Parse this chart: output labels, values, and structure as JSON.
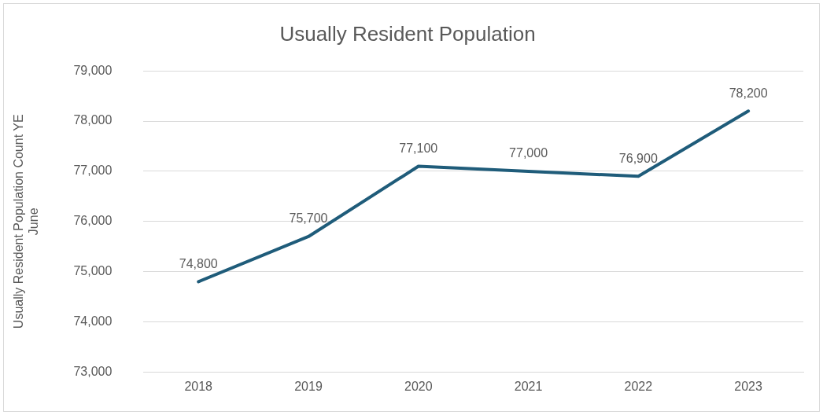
{
  "chart_data": {
    "type": "line",
    "title": "Usually Resident Population",
    "ylabel": "Usually Resident Population Count YE June",
    "categories": [
      "2018",
      "2019",
      "2020",
      "2021",
      "2022",
      "2023"
    ],
    "series": [
      {
        "color": "#1f5c7a",
        "values": [
          74800,
          75700,
          77100,
          77000,
          76900,
          78200
        ],
        "value_labels": [
          "74,800",
          "75,700",
          "77,100",
          "77,000",
          "76,900",
          "78,200"
        ]
      }
    ],
    "ylim": [
      73000,
      79000
    ],
    "yticks": [
      {
        "value": 73000,
        "label": "73,000"
      },
      {
        "value": 74000,
        "label": "74,000"
      },
      {
        "value": 75000,
        "label": "75,000"
      },
      {
        "value": 76000,
        "label": "76,000"
      },
      {
        "value": 77000,
        "label": "77,000"
      },
      {
        "value": 78000,
        "label": "78,000"
      },
      {
        "value": 79000,
        "label": "79,000"
      }
    ],
    "grid": "y",
    "legend": false,
    "marker": "none",
    "line_style": "solid"
  }
}
